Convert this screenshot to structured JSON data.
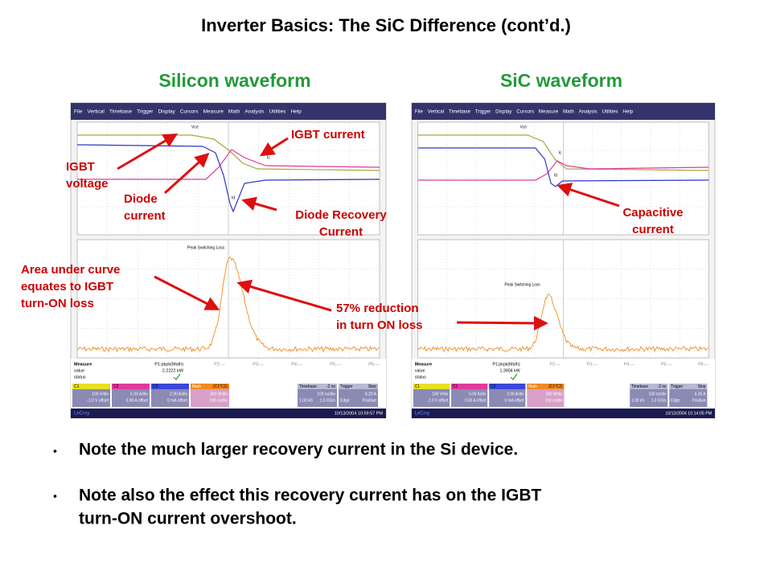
{
  "title": "Inverter Basics: The SiC Difference (cont’d.)",
  "panels": [
    {
      "heading": "Silicon waveform",
      "scope": {
        "menu": [
          "File",
          "Vertical",
          "Timebase",
          "Trigger",
          "Display",
          "Cursors",
          "Measure",
          "Math",
          "Analysis",
          "Utilities",
          "Help"
        ],
        "traces": [
          "Vce",
          "Ic",
          "Id"
        ],
        "math_label": "Peak Switching Loss",
        "measure": {
          "labels": [
            "Measure",
            "value",
            "status"
          ],
          "param": "P1:pkpk(Math)",
          "value": "2.2222 kW",
          "others": [
            "P2:---",
            "P3:---",
            "P4:---",
            "P5:---",
            "P6:---"
          ]
        },
        "channels": [
          {
            "name": "C1",
            "scale": "100 V/div",
            "offset": "-1.0 V offset"
          },
          {
            "name": "C2",
            "scale": "5.00 A/div",
            "offset": "0.00 A offset"
          },
          {
            "name": "C3",
            "scale": "2.00 A/div",
            "offset": "0 mA offset"
          }
        ],
        "math": {
          "name": "Math",
          "source": "(C1*C2)",
          "scale": "300 W/div",
          "time": "100 ns/div"
        },
        "timebase": {
          "label": "Timebase",
          "delay": "-2 ns",
          "div": "100 ns/div",
          "samples": "1.00 kS",
          "rate": "1.0 GS/s"
        },
        "trigger": {
          "label": "Trigger",
          "mode": "Stop",
          "level": "8.20 A",
          "type": "Edge",
          "slope": "Positive"
        },
        "brand": "LeCroy",
        "timestamp": "10/13/2004 10:59:57 PM"
      },
      "annotations": [
        {
          "lines": [
            "IGBT current"
          ]
        },
        {
          "lines": [
            "IGBT",
            "voltage"
          ]
        },
        {
          "lines": [
            "Diode",
            "current"
          ]
        },
        {
          "lines": [
            "Diode Recovery",
            "Current"
          ]
        },
        {
          "lines": [
            "Area under curve",
            "equates to IGBT",
            "turn-ON loss"
          ]
        },
        {
          "lines": [
            "57% reduction",
            "in turn ON loss"
          ]
        }
      ]
    },
    {
      "heading": "SiC waveform",
      "scope": {
        "menu": [
          "File",
          "Vertical",
          "Timebase",
          "Trigger",
          "Display",
          "Cursors",
          "Measure",
          "Math",
          "Analysis",
          "Utilities",
          "Help"
        ],
        "traces": [
          "Vce",
          "Ic",
          "Id"
        ],
        "math_label": "Peak Switching Loss",
        "measure": {
          "labels": [
            "Measure",
            "value",
            "status"
          ],
          "param": "P1:pkpk(Math)",
          "value": "1.3904 kW",
          "others": [
            "P2:---",
            "P3:---",
            "P4:---",
            "P5:---",
            "P6:---"
          ]
        },
        "channels": [
          {
            "name": "C1",
            "scale": "100 V/div",
            "offset": "-1.0 V offset"
          },
          {
            "name": "C2",
            "scale": "5.00 A/div",
            "offset": "0.00 A offset"
          },
          {
            "name": "C3",
            "scale": "2.00 A/div",
            "offset": "0 mA offset"
          }
        ],
        "math": {
          "name": "Math",
          "source": "(C1*C2)",
          "scale": "300 W/div",
          "time": "100 ns/div"
        },
        "timebase": {
          "label": "Timebase",
          "delay": "-2 ns",
          "div": "100 ns/div",
          "samples": "1.00 kS",
          "rate": "1.0 GS/s"
        },
        "trigger": {
          "label": "Trigger",
          "mode": "Stop",
          "level": "6.35 A",
          "type": "Edge",
          "slope": "Positive"
        },
        "brand": "LeCroy",
        "timestamp": "10/13/2004 10:14:05 PM"
      },
      "annotations": [
        {
          "lines": [
            "Capacitive",
            "current"
          ]
        }
      ]
    }
  ],
  "bullets": [
    {
      "lines": [
        "Note the much larger recovery current in the Si device."
      ]
    },
    {
      "lines": [
        "Note also the effect this recovery current has on the IGBT",
        "turn-ON current  overshoot."
      ]
    }
  ]
}
